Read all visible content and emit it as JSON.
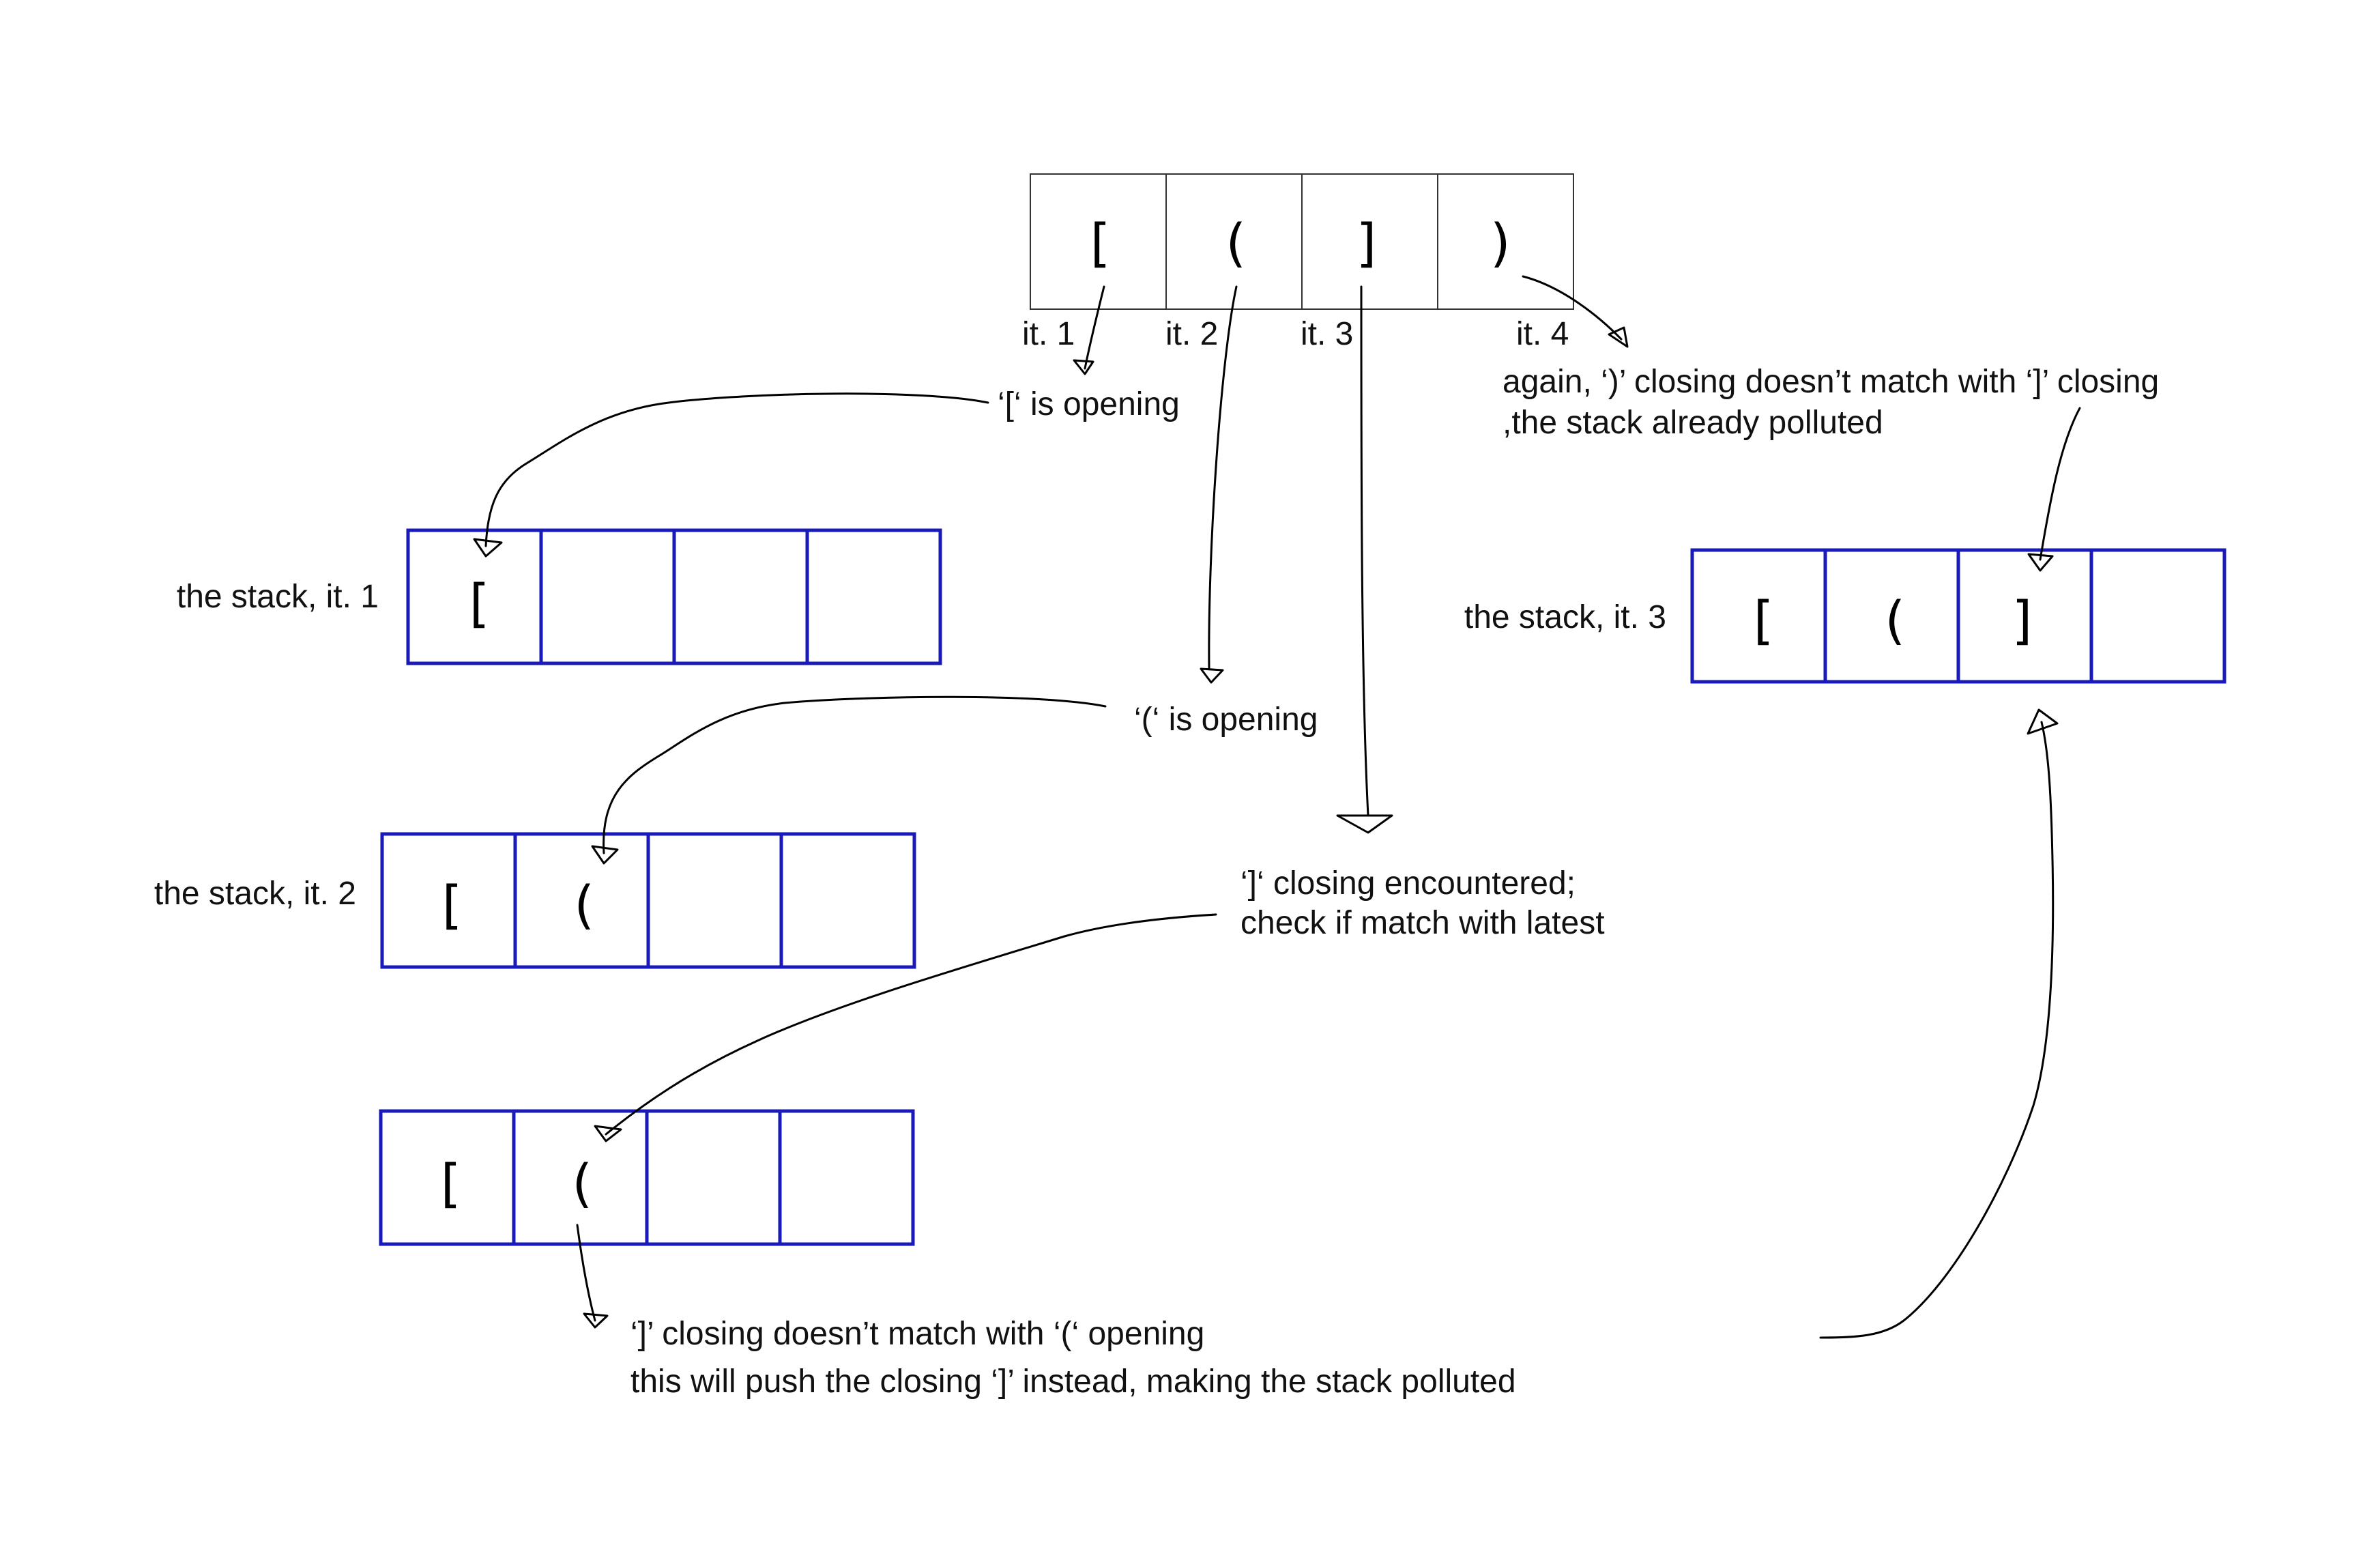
{
  "input": {
    "cells": [
      "[",
      "(",
      "]",
      ")"
    ],
    "iterations": [
      "it. 1",
      "it. 2",
      "it. 3",
      "it. 4"
    ]
  },
  "stack_it1": {
    "label": "the stack, it. 1",
    "cells": [
      "[",
      "",
      "",
      ""
    ]
  },
  "stack_it2": {
    "label": "the stack, it. 2",
    "cells": [
      "[",
      "(",
      "",
      ""
    ]
  },
  "stack_check": {
    "label": "",
    "cells": [
      "[",
      "(",
      "",
      ""
    ]
  },
  "stack_it3": {
    "label": "the stack, it. 3",
    "cells": [
      "[",
      "(",
      "]",
      ""
    ]
  },
  "annotations": {
    "open_bracket": "‘[‘ is opening",
    "open_paren": "‘(‘ is opening",
    "closing_line1": "‘]‘ closing encountered;",
    "closing_line2": "check if match with latest",
    "mismatch_line1": "‘]’ closing doesn’t match with ‘(‘ opening",
    "mismatch_line2": "this will push the closing ‘]’ instead, making the stack polluted",
    "again_line1": "again, ‘)’ closing doesn’t match with ‘]’ closing",
    "again_line2": ",the stack already polluted"
  },
  "colors": {
    "stack_border": "#1a1ab8",
    "input_border": "#333333",
    "arrow": "#000000"
  }
}
